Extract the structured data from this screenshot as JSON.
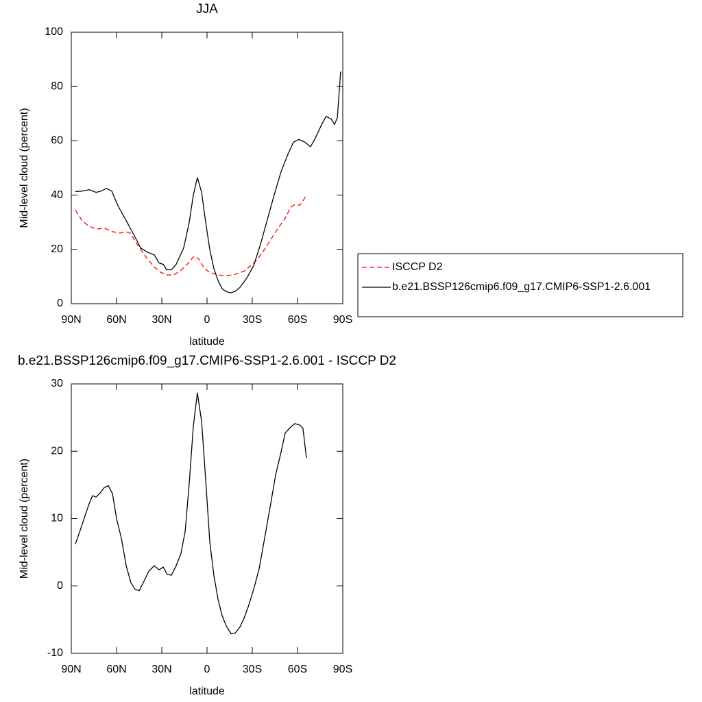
{
  "chart_data": [
    {
      "type": "line",
      "title": "JJA",
      "xlabel": "latitude",
      "ylabel": "Mid-level cloud (percent)",
      "xlim": [
        90,
        -90
      ],
      "xticks": [
        {
          "value": 90,
          "label": "90N"
        },
        {
          "value": 60,
          "label": "60N"
        },
        {
          "value": 30,
          "label": "30N"
        },
        0,
        {
          "value": -30,
          "label": "30S"
        },
        {
          "value": -60,
          "label": "60S"
        },
        {
          "value": -90,
          "label": "90S"
        }
      ],
      "ylim": [
        0,
        100
      ],
      "yticks": [
        0,
        20,
        40,
        60,
        80,
        100
      ],
      "legend": "right",
      "series": [
        {
          "name": "ISCCP D2",
          "color": "#ff0000",
          "linestyle": "dashed",
          "x": [
            87.3,
            82.7,
            78.2,
            73.6,
            68.2,
            62.3,
            57.7,
            54,
            50.9,
            47.7,
            44,
            39.5,
            35,
            30.5,
            26,
            21.4,
            16.8,
            12.3,
            8.6,
            5.5,
            1.8,
            -1.8,
            -6.4,
            -10.9,
            -15.5,
            -20,
            -24.5,
            -29,
            -33.6,
            -38.2,
            -42.7,
            -47.3,
            -51.8,
            -55.5,
            -58.2,
            -61.4,
            -63.2,
            -65.9
          ],
          "values": [
            34.5,
            30.5,
            28.5,
            27.5,
            27.8,
            26.5,
            26,
            26.5,
            26,
            23,
            20,
            16.5,
            13.5,
            11.5,
            10.5,
            10.8,
            12.5,
            15,
            17.5,
            16.5,
            13,
            11.5,
            10.8,
            10.3,
            10.5,
            11,
            12,
            14,
            16.5,
            20,
            24,
            28,
            31.5,
            35.5,
            36.5,
            36.3,
            37.5,
            40
          ]
        },
        {
          "name": "b.e21.BSSP126cmip6.f09_g17.CMIP6-SSP1-2.6.001",
          "color": "#000000",
          "linestyle": "solid",
          "x": [
            87.3,
            82.7,
            78.2,
            73.6,
            70,
            66.8,
            63.2,
            59,
            53,
            47.7,
            44,
            39.5,
            35,
            31.8,
            29,
            26.8,
            23.6,
            20.5,
            15.5,
            11.8,
            9.1,
            6.4,
            3.6,
            0.9,
            -1.8,
            -4.5,
            -7.3,
            -10,
            -12.7,
            -15.5,
            -18.6,
            -21.8,
            -26.4,
            -30.9,
            -35.5,
            -40,
            -44.5,
            -49,
            -53.6,
            -57.3,
            -60.9,
            -65,
            -68.6,
            -71.8,
            -76.4,
            -79,
            -82.3,
            -84.5,
            -86.4,
            -88.6
          ],
          "values": [
            41.3,
            41.5,
            42,
            41,
            41.5,
            42.5,
            41.5,
            36,
            30,
            24.5,
            20.5,
            19,
            18,
            15,
            14.5,
            12.5,
            12.5,
            14.5,
            20.5,
            30,
            40,
            46.5,
            41,
            30,
            20,
            13,
            8.5,
            5.5,
            4.5,
            4,
            4.5,
            6,
            9.5,
            14,
            22,
            31,
            40,
            48.5,
            55,
            59.5,
            60.5,
            59.5,
            57.8,
            61,
            66.5,
            69,
            68,
            66,
            68.5,
            85.5
          ]
        }
      ]
    },
    {
      "type": "line",
      "title": "b.e21.BSSP126cmip6.f09_g17.CMIP6-SSP1-2.6.001 - ISCCP D2",
      "xlabel": "latitude",
      "ylabel": "Mid-level cloud (percent)",
      "xlim": [
        90,
        -90
      ],
      "xticks": [
        {
          "value": 90,
          "label": "90N"
        },
        {
          "value": 60,
          "label": "60N"
        },
        {
          "value": 30,
          "label": "30N"
        },
        0,
        {
          "value": -30,
          "label": "30S"
        },
        {
          "value": -60,
          "label": "60S"
        },
        {
          "value": -90,
          "label": "90S"
        }
      ],
      "ylim": [
        -10,
        30
      ],
      "yticks": [
        -10,
        0,
        10,
        20,
        30
      ],
      "series": [
        {
          "color": "#000000",
          "linestyle": "solid",
          "x": [
            87.3,
            83.6,
            80.5,
            78.2,
            75.9,
            73.6,
            70.5,
            68.2,
            65.5,
            62.7,
            60,
            56.8,
            53.6,
            50.5,
            47.7,
            45,
            41.8,
            38.6,
            35,
            31.8,
            29,
            26.4,
            23.6,
            20.5,
            17.3,
            14.5,
            11.8,
            9.1,
            6.4,
            3.6,
            0.9,
            -1.8,
            -4.5,
            -7.3,
            -10,
            -12.7,
            -15.9,
            -18.6,
            -21.8,
            -24.5,
            -27.3,
            -30.9,
            -34.5,
            -38.2,
            -41.8,
            -45.5,
            -49,
            -51.8,
            -55.5,
            -58.2,
            -61.4,
            -63.6,
            -65.9
          ],
          "values": [
            6.2,
            8.6,
            10.7,
            12.2,
            13.4,
            13.2,
            13.9,
            14.6,
            14.9,
            13.7,
            10,
            7.1,
            3,
            0.5,
            -0.5,
            -0.7,
            0.7,
            2.2,
            3,
            2.4,
            2.8,
            1.7,
            1.6,
            3,
            4.8,
            8.1,
            15.2,
            23.7,
            28.7,
            24.4,
            15.8,
            6.6,
            1.6,
            -2,
            -4.4,
            -5.9,
            -7.1,
            -7,
            -6.1,
            -4.8,
            -3.1,
            -0.5,
            2.5,
            7.1,
            11.7,
            16.5,
            19.8,
            22.7,
            23.6,
            24.1,
            23.9,
            23.4,
            19
          ]
        }
      ]
    }
  ]
}
